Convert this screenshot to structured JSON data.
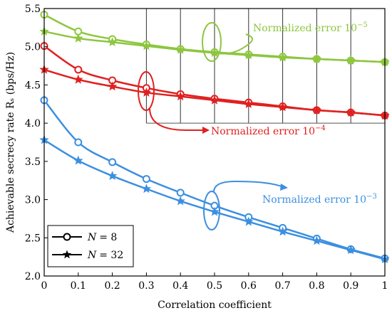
{
  "chart_data": {
    "type": "line",
    "xlabel": "Correlation coefficient",
    "ylabel": "Achievable secrecy rate Rₛ (bps/Hz)",
    "xlim": [
      0,
      1
    ],
    "ylim": [
      2.0,
      5.5
    ],
    "x": [
      0,
      0.1,
      0.2,
      0.3,
      0.4,
      0.5,
      0.6,
      0.7,
      0.8,
      0.9,
      1.0
    ],
    "xticks": [
      "0",
      "0.1",
      "0.2",
      "0.3",
      "0.4",
      "0.5",
      "0.6",
      "0.7",
      "0.8",
      "0.9",
      "1"
    ],
    "yticks": [
      "2.0",
      "2.5",
      "3.0",
      "3.5",
      "4.0",
      "4.5",
      "5.0",
      "5.5"
    ],
    "grid": "vertical lines from x=0.3 to 1 in the upper region, horizontal line at y=4.0",
    "legend_position": "bottom-left",
    "legend": [
      {
        "label_prefix": "N",
        "label_suffix": "= 8",
        "marker": "circle"
      },
      {
        "label_prefix": "N",
        "label_suffix": "= 32",
        "marker": "star"
      }
    ],
    "series": [
      {
        "group": "green",
        "marker": "circle",
        "color": "#8dc63f",
        "values": [
          5.42,
          5.2,
          5.1,
          5.03,
          4.97,
          4.93,
          4.9,
          4.87,
          4.84,
          4.82,
          4.8
        ]
      },
      {
        "group": "green",
        "marker": "star",
        "color": "#8dc63f",
        "values": [
          5.2,
          5.11,
          5.06,
          5.01,
          4.96,
          4.92,
          4.89,
          4.86,
          4.84,
          4.82,
          4.8
        ]
      },
      {
        "group": "red",
        "marker": "circle",
        "color": "#e02020",
        "values": [
          5.01,
          4.7,
          4.56,
          4.46,
          4.38,
          4.32,
          4.27,
          4.22,
          4.17,
          4.14,
          4.1
        ]
      },
      {
        "group": "red",
        "marker": "star",
        "color": "#e02020",
        "values": [
          4.7,
          4.57,
          4.48,
          4.4,
          4.35,
          4.3,
          4.25,
          4.21,
          4.17,
          4.14,
          4.1
        ]
      },
      {
        "group": "blue",
        "marker": "circle",
        "color": "#3c8fe0",
        "values": [
          4.3,
          3.75,
          3.49,
          3.27,
          3.09,
          2.92,
          2.77,
          2.63,
          2.49,
          2.35,
          2.23
        ]
      },
      {
        "group": "blue",
        "marker": "star",
        "color": "#3c8fe0",
        "values": [
          3.78,
          3.51,
          3.31,
          3.14,
          2.98,
          2.84,
          2.71,
          2.58,
          2.46,
          2.34,
          2.22
        ]
      }
    ],
    "annotations": [
      {
        "text": "Normalized error 10",
        "exponent": "−5",
        "color": "#8dc63f"
      },
      {
        "text": "Normalized error 10",
        "exponent": "−4",
        "color": "#e02020"
      },
      {
        "text": "Normalized error 10",
        "exponent": "−3",
        "color": "#3c8fe0"
      }
    ]
  }
}
